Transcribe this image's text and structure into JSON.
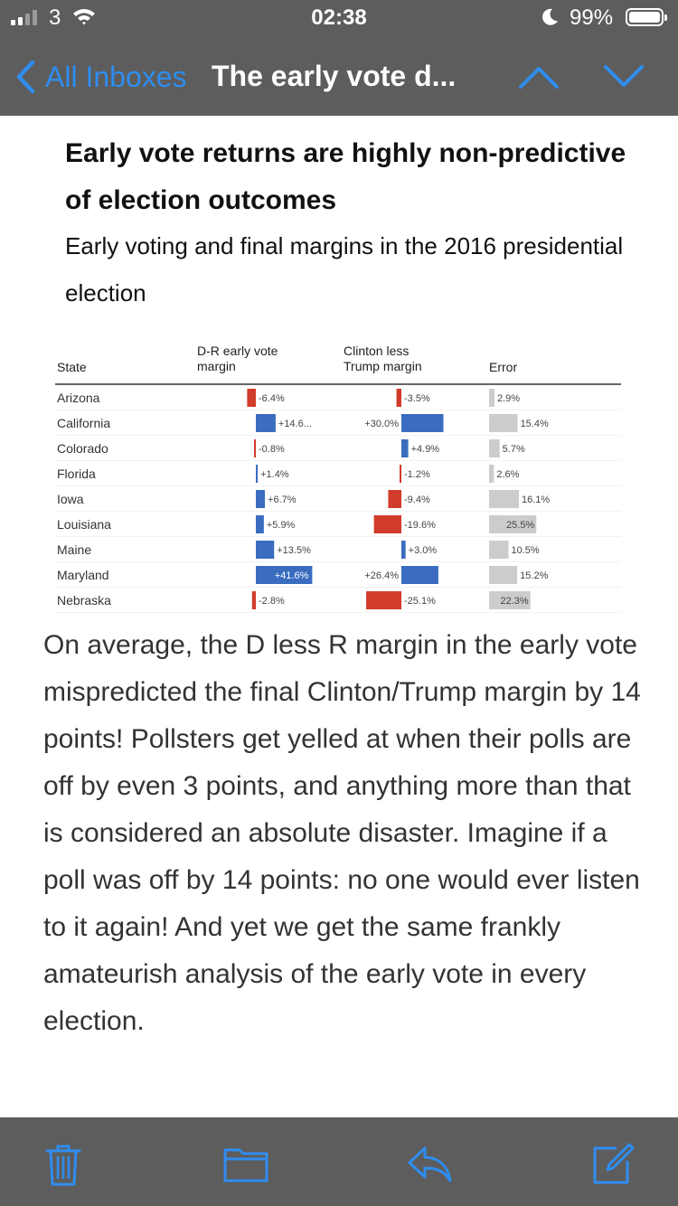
{
  "status_bar": {
    "carrier": "3",
    "time": "02:38",
    "battery": "99%"
  },
  "nav": {
    "back_label": "All Inboxes",
    "subject": "The early vote d..."
  },
  "email": {
    "headline": "Early vote returns are highly non-predictive of election outcomes",
    "subhead": "Early voting and final margins in the 2016 presidential election",
    "body": "On average, the D less R margin in the early vote mispredicted the final Clinton/Trump margin by 14 points! Pollsters get yelled at when their polls are off by even 3 points, and anything more than that is considered an absolute disaster. Imagine if a poll was off by 14 points: no one would ever listen to it again! And yet we get the same frankly amateurish analysis of the early vote in every election."
  },
  "chart_data": {
    "type": "table",
    "columns": [
      "State",
      "D-R early vote margin",
      "Clinton less Trump margin",
      "Error"
    ],
    "colors": {
      "positive": "#3a6dbf",
      "negative": "#d13b2a",
      "error": "#cccccc"
    },
    "rows": [
      {
        "state": "Arizona",
        "early": -6.4,
        "early_label": "-6.4%",
        "final": -3.5,
        "final_label": "-3.5%",
        "error": 2.9,
        "error_label": "2.9%"
      },
      {
        "state": "California",
        "early": 14.6,
        "early_label": "+14.6...",
        "final": 30.0,
        "final_label": "+30.0%",
        "error": 15.4,
        "error_label": "15.4%"
      },
      {
        "state": "Colorado",
        "early": -0.8,
        "early_label": "-0.8%",
        "final": 4.9,
        "final_label": "+4.9%",
        "error": 5.7,
        "error_label": "5.7%"
      },
      {
        "state": "Florida",
        "early": 1.4,
        "early_label": "+1.4%",
        "final": -1.2,
        "final_label": "-1.2%",
        "error": 2.6,
        "error_label": "2.6%"
      },
      {
        "state": "Iowa",
        "early": 6.7,
        "early_label": "+6.7%",
        "final": -9.4,
        "final_label": "-9.4%",
        "error": 16.1,
        "error_label": "16.1%"
      },
      {
        "state": "Louisiana",
        "early": 5.9,
        "early_label": "+5.9%",
        "final": -19.6,
        "final_label": "-19.6%",
        "error": 25.5,
        "error_label": "25.5%"
      },
      {
        "state": "Maine",
        "early": 13.5,
        "early_label": "+13.5%",
        "final": 3.0,
        "final_label": "+3.0%",
        "error": 10.5,
        "error_label": "10.5%"
      },
      {
        "state": "Maryland",
        "early": 41.6,
        "early_label": "+41.6%",
        "final": 26.4,
        "final_label": "+26.4%",
        "error": 15.2,
        "error_label": "15.2%"
      },
      {
        "state": "Nebraska",
        "early": -2.8,
        "early_label": "-2.8%",
        "final": -25.1,
        "final_label": "-25.1%",
        "error": 22.3,
        "error_label": "22.3%"
      }
    ]
  },
  "toolbar": {
    "icons": [
      "trash-icon",
      "folder-icon",
      "reply-icon",
      "compose-icon"
    ]
  }
}
